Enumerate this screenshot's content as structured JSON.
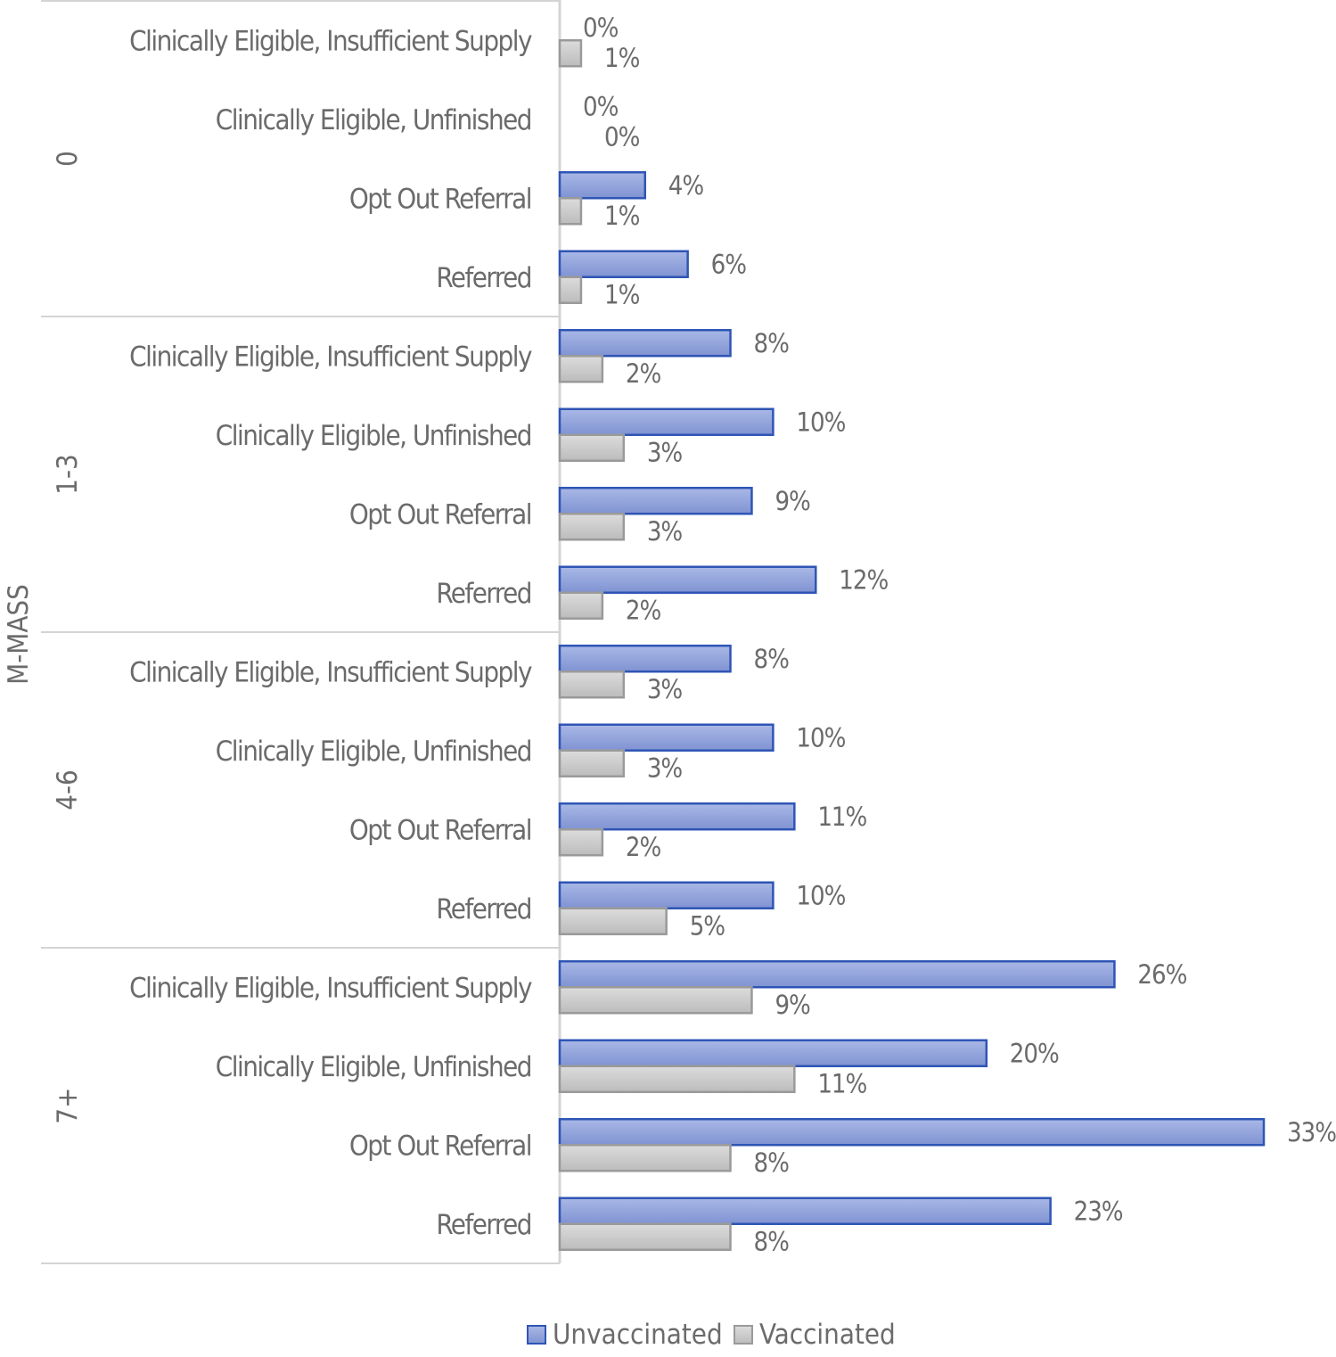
{
  "chart_data": {
    "type": "bar",
    "orientation": "horizontal",
    "axis_title": "M-MASS",
    "groups": [
      {
        "label": "0",
        "categories": [
          "Clinically Eligible, Insufficient Supply",
          "Clinically Eligible, Unfinished",
          "Opt Out Referral",
          "Referred"
        ],
        "unvaccinated": [
          0,
          0,
          4,
          6
        ],
        "vaccinated": [
          1,
          0,
          1,
          1
        ],
        "unvaccinated_labels": [
          "0%",
          "0%",
          "4%",
          "6%"
        ],
        "vaccinated_labels": [
          "1%",
          "0%",
          "1%",
          "1%"
        ]
      },
      {
        "label": "1-3",
        "categories": [
          "Clinically Eligible, Insufficient Supply",
          "Clinically Eligible, Unfinished",
          "Opt Out Referral",
          "Referred"
        ],
        "unvaccinated": [
          8,
          10,
          9,
          12
        ],
        "vaccinated": [
          2,
          3,
          3,
          2
        ],
        "unvaccinated_labels": [
          "8%",
          "10%",
          "9%",
          "12%"
        ],
        "vaccinated_labels": [
          "2%",
          "3%",
          "3%",
          "2%"
        ]
      },
      {
        "label": "4-6",
        "categories": [
          "Clinically Eligible, Insufficient Supply",
          "Clinically Eligible, Unfinished",
          "Opt Out Referral",
          "Referred"
        ],
        "unvaccinated": [
          8,
          10,
          11,
          10
        ],
        "vaccinated": [
          3,
          3,
          2,
          5
        ],
        "unvaccinated_labels": [
          "8%",
          "10%",
          "11%",
          "10%"
        ],
        "vaccinated_labels": [
          "3%",
          "3%",
          "2%",
          "5%"
        ]
      },
      {
        "label": "7+",
        "categories": [
          "Clinically Eligible, Insufficient Supply",
          "Clinically Eligible, Unfinished",
          "Opt Out Referral",
          "Referred"
        ],
        "unvaccinated": [
          26,
          20,
          33,
          23
        ],
        "vaccinated": [
          9,
          11,
          8,
          8
        ],
        "unvaccinated_labels": [
          "26%",
          "20%",
          "33%",
          "23%"
        ],
        "vaccinated_labels": [
          "9%",
          "11%",
          "8%",
          "8%"
        ]
      }
    ],
    "series": [
      {
        "name": "Unvaccinated",
        "color": "#8fa2da",
        "border": "#2f55b5"
      },
      {
        "name": "Vaccinated",
        "color": "#cfcfcf",
        "border": "#9a9a9a"
      }
    ],
    "xlim": [
      0,
      33
    ],
    "legend": "bottom-center",
    "grid": false
  }
}
